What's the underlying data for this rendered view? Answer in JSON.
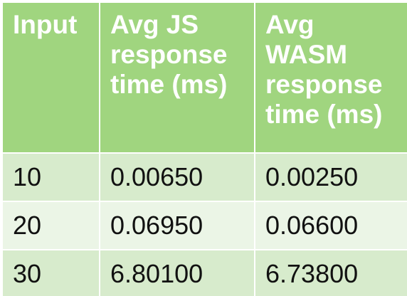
{
  "chart_data": {
    "type": "table",
    "columns": [
      "Input",
      "Avg JS response time (ms)",
      "Avg WASM response time (ms)"
    ],
    "header_lines": [
      [
        "Input"
      ],
      [
        "Avg JS",
        "response",
        "time (ms)"
      ],
      [
        "Avg",
        "WASM",
        "response",
        "time (ms)"
      ]
    ],
    "rows": [
      [
        "10",
        "0.00650",
        "0.00250"
      ],
      [
        "20",
        "0.06950",
        "0.06600"
      ],
      [
        "30",
        "6.80100",
        "6.73800"
      ]
    ]
  },
  "colors": {
    "header_bg": "#a0d57f",
    "header_text": "#ffffff",
    "row_odd_bg": "#d7ebcc",
    "row_even_bg": "#ebf5e6",
    "cell_text": "#111111"
  }
}
